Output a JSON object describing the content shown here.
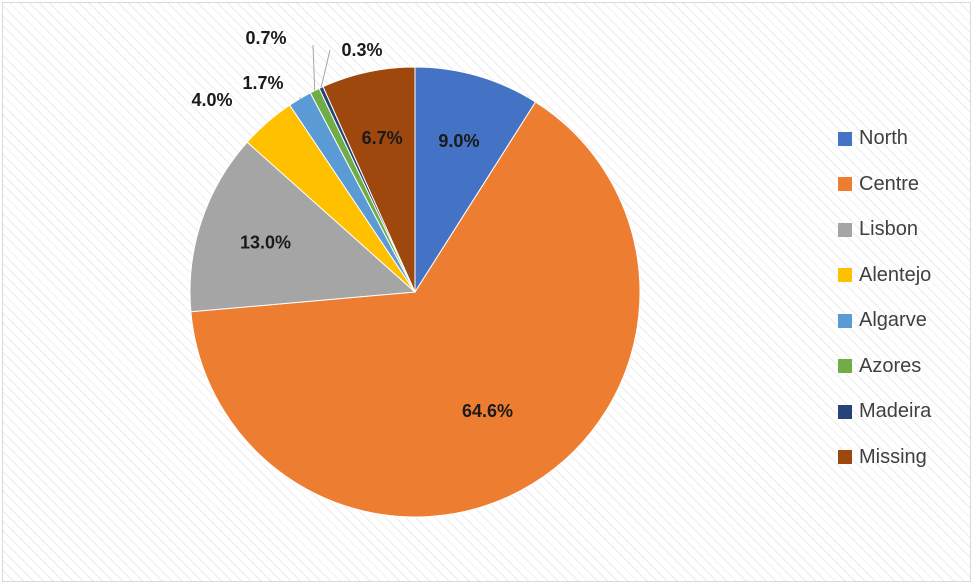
{
  "chart_data": {
    "type": "pie",
    "categories": [
      "North",
      "Centre",
      "Lisbon",
      "Alentejo",
      "Algarve",
      "Azores",
      "Madeira",
      "Missing"
    ],
    "values": [
      9.0,
      64.6,
      13.0,
      4.0,
      1.7,
      0.7,
      0.3,
      6.7
    ],
    "labels": [
      "9.0%",
      "64.6%",
      "13.0%",
      "4.0%",
      "1.7%",
      "0.7%",
      "0.3%",
      "6.7%"
    ],
    "colors": [
      "#4472C4",
      "#ED7D31",
      "#A5A5A5",
      "#FFC000",
      "#5B9BD5",
      "#70AD47",
      "#264478",
      "#9E480E"
    ],
    "legend_position": "right"
  }
}
